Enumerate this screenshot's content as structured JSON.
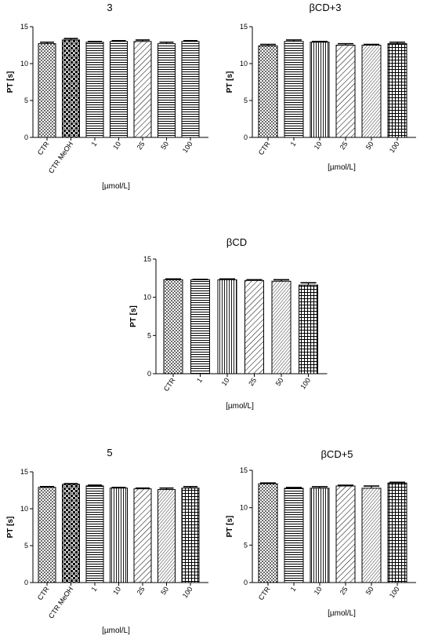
{
  "chart_data": [
    {
      "type": "bar",
      "title": "3",
      "ylabel": "PT [s]",
      "xlabel": "[µmol/L]",
      "ylim": [
        0,
        15
      ],
      "yticks": [
        0,
        5,
        10,
        15
      ],
      "categories": [
        "CTR",
        "CTR MeOH",
        "1",
        "10",
        "25",
        "50",
        "100"
      ],
      "values": [
        12.7,
        13.2,
        12.9,
        13.0,
        13.0,
        12.7,
        13.0
      ],
      "errors": [
        0.2,
        0.2,
        0.1,
        0.1,
        0.2,
        0.2,
        0.1
      ],
      "patterns": [
        "dots",
        "checker",
        "hlines",
        "hlines",
        "diag",
        "hlines",
        "hlines"
      ],
      "grid": false
    },
    {
      "type": "bar",
      "title": "βCD+3",
      "ylabel": "PT [s]",
      "xlabel": "[µmol/L]",
      "ylim": [
        0,
        15
      ],
      "yticks": [
        0,
        5,
        10,
        15
      ],
      "categories": [
        "CTR",
        "1",
        "10",
        "25",
        "50",
        "100"
      ],
      "values": [
        12.4,
        13.0,
        12.9,
        12.5,
        12.5,
        12.7
      ],
      "errors": [
        0.2,
        0.2,
        0.1,
        0.2,
        0.1,
        0.2
      ],
      "patterns": [
        "dots",
        "hlines",
        "vlines",
        "diag",
        "diagdense",
        "grid"
      ],
      "grid": false
    },
    {
      "type": "bar",
      "title": "βCD",
      "ylabel": "PT [s]",
      "xlabel": "[µmol/L]",
      "ylim": [
        0,
        15
      ],
      "yticks": [
        0,
        5,
        10,
        15
      ],
      "categories": [
        "CTR",
        "1",
        "10",
        "25",
        "50",
        "100"
      ],
      "values": [
        12.3,
        12.3,
        12.3,
        12.2,
        12.1,
        11.6
      ],
      "errors": [
        0.1,
        0.05,
        0.1,
        0.1,
        0.2,
        0.3
      ],
      "patterns": [
        "dots",
        "hlines",
        "vlines",
        "diag",
        "diagdense",
        "grid"
      ],
      "grid": false
    },
    {
      "type": "bar",
      "title": "5",
      "ylabel": "PT [s]",
      "xlabel": "[µmol/L]",
      "ylim": [
        0,
        15
      ],
      "yticks": [
        0,
        5,
        10,
        15
      ],
      "categories": [
        "CTR",
        "CTR MeOH",
        "1",
        "10",
        "25",
        "50",
        "100"
      ],
      "values": [
        12.9,
        13.3,
        13.1,
        12.8,
        12.7,
        12.6,
        12.8
      ],
      "errors": [
        0.1,
        0.1,
        0.1,
        0.1,
        0.1,
        0.2,
        0.2
      ],
      "patterns": [
        "dots",
        "checker",
        "hlines",
        "vlines",
        "diag",
        "diagdense",
        "grid"
      ],
      "grid": false
    },
    {
      "type": "bar",
      "title": "βCD+5",
      "ylabel": "PT [s]",
      "xlabel": "[µmol/L]",
      "ylim": [
        0,
        15
      ],
      "yticks": [
        0,
        5,
        10,
        15
      ],
      "categories": [
        "CTR",
        "1",
        "10",
        "25",
        "50",
        "100"
      ],
      "values": [
        13.2,
        12.6,
        12.6,
        12.9,
        12.6,
        13.3
      ],
      "errors": [
        0.1,
        0.1,
        0.2,
        0.1,
        0.3,
        0.1
      ],
      "patterns": [
        "dots",
        "hlines",
        "vlines",
        "diag",
        "diagdense",
        "grid"
      ],
      "grid": false
    }
  ]
}
